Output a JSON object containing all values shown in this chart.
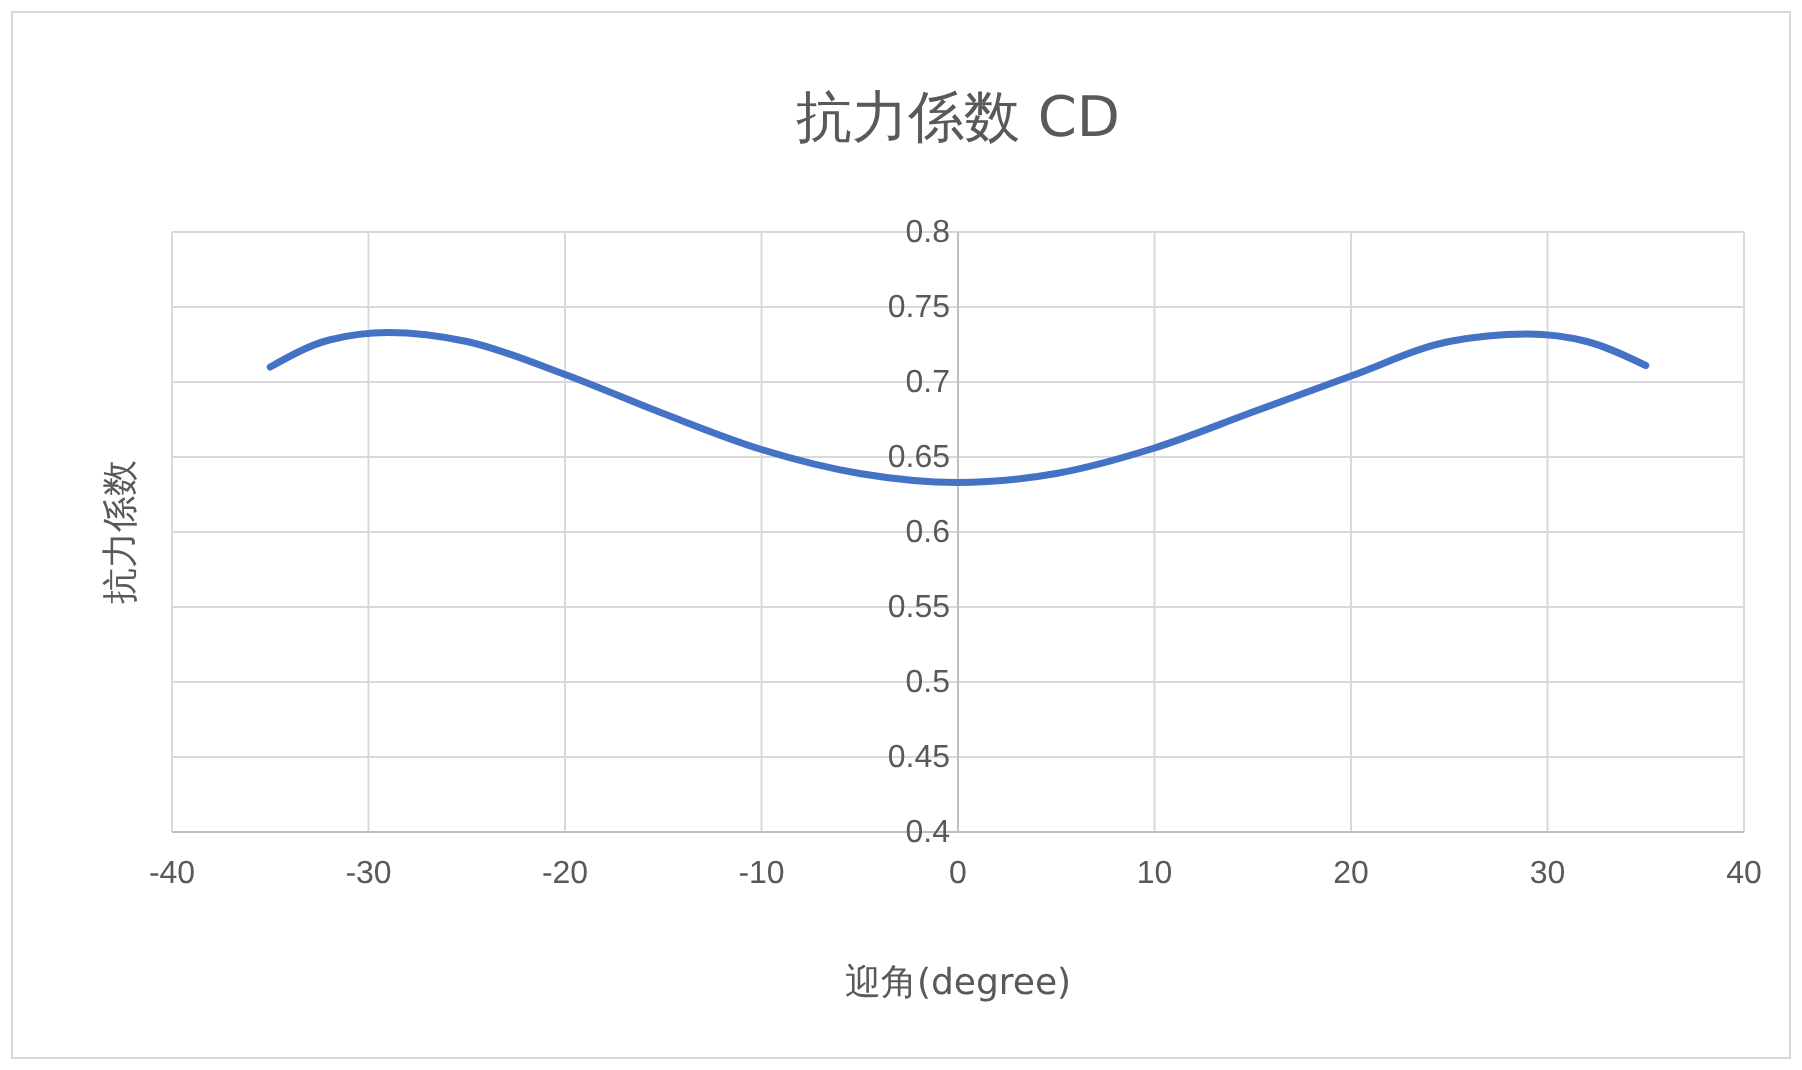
{
  "chart_data": {
    "type": "line",
    "title": "抗力係数 CD",
    "xlabel": "迎角(degree)",
    "ylabel": "抗力係数",
    "x": [
      -35,
      -32,
      -29,
      -25,
      -20,
      -15,
      -10,
      -5,
      0,
      5,
      10,
      15,
      20,
      25,
      29,
      32,
      35
    ],
    "series": [
      {
        "color": "#4472c4",
        "values": [
          0.71,
          0.728,
          0.733,
          0.727,
          0.705,
          0.679,
          0.655,
          0.639,
          0.633,
          0.639,
          0.656,
          0.68,
          0.704,
          0.727,
          0.732,
          0.727,
          0.711
        ]
      }
    ],
    "xlim": [
      -40,
      40
    ],
    "xticks": [
      -40,
      -30,
      -20,
      -10,
      0,
      10,
      20,
      30,
      40
    ],
    "ylim": [
      0.4,
      0.8
    ],
    "yticks": [
      0.4,
      0.45,
      0.5,
      0.55,
      0.6,
      0.65,
      0.7,
      0.75,
      0.8
    ],
    "grid": true,
    "marker": "none",
    "line_style": "solid"
  }
}
